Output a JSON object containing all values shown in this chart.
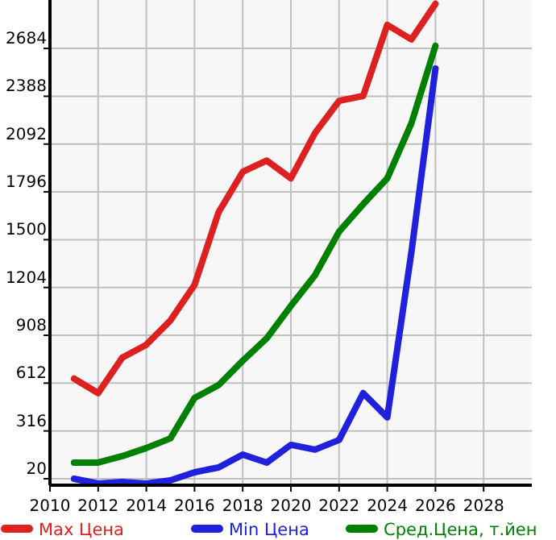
{
  "chart_data": {
    "type": "line",
    "x": [
      2011,
      2012,
      2013,
      2014,
      2015,
      2016,
      2017,
      2018,
      2019,
      2020,
      2021,
      2022,
      2023,
      2024,
      2025,
      2026
    ],
    "series": [
      {
        "name": "Max Цена",
        "color": "#dd2020",
        "values": [
          640,
          550,
          770,
          850,
          1000,
          1220,
          1670,
          1920,
          1990,
          1880,
          2160,
          2360,
          2390,
          2830,
          2740,
          2960
        ]
      },
      {
        "name": "Min Цена",
        "color": "#2020dd",
        "values": [
          20,
          -10,
          0,
          -10,
          10,
          60,
          90,
          170,
          120,
          230,
          200,
          260,
          550,
          400,
          1420,
          2560
        ]
      },
      {
        "name": "Сред.Цена, т.йен",
        "color": "#008000",
        "values": [
          120,
          120,
          160,
          210,
          270,
          520,
          600,
          750,
          890,
          1090,
          1280,
          1550,
          1720,
          1880,
          2220,
          2700
        ]
      }
    ],
    "xlim": [
      2010,
      2030
    ],
    "xticks": [
      2010,
      2012,
      2014,
      2016,
      2018,
      2020,
      2022,
      2024,
      2026,
      2028
    ],
    "ylim": [
      -20,
      2984
    ],
    "yticks": [
      20,
      316,
      612,
      908,
      1204,
      1500,
      1796,
      2092,
      2388,
      2684
    ],
    "grid": true,
    "legend": "bottom",
    "marker": "none",
    "line_style": "solid"
  }
}
